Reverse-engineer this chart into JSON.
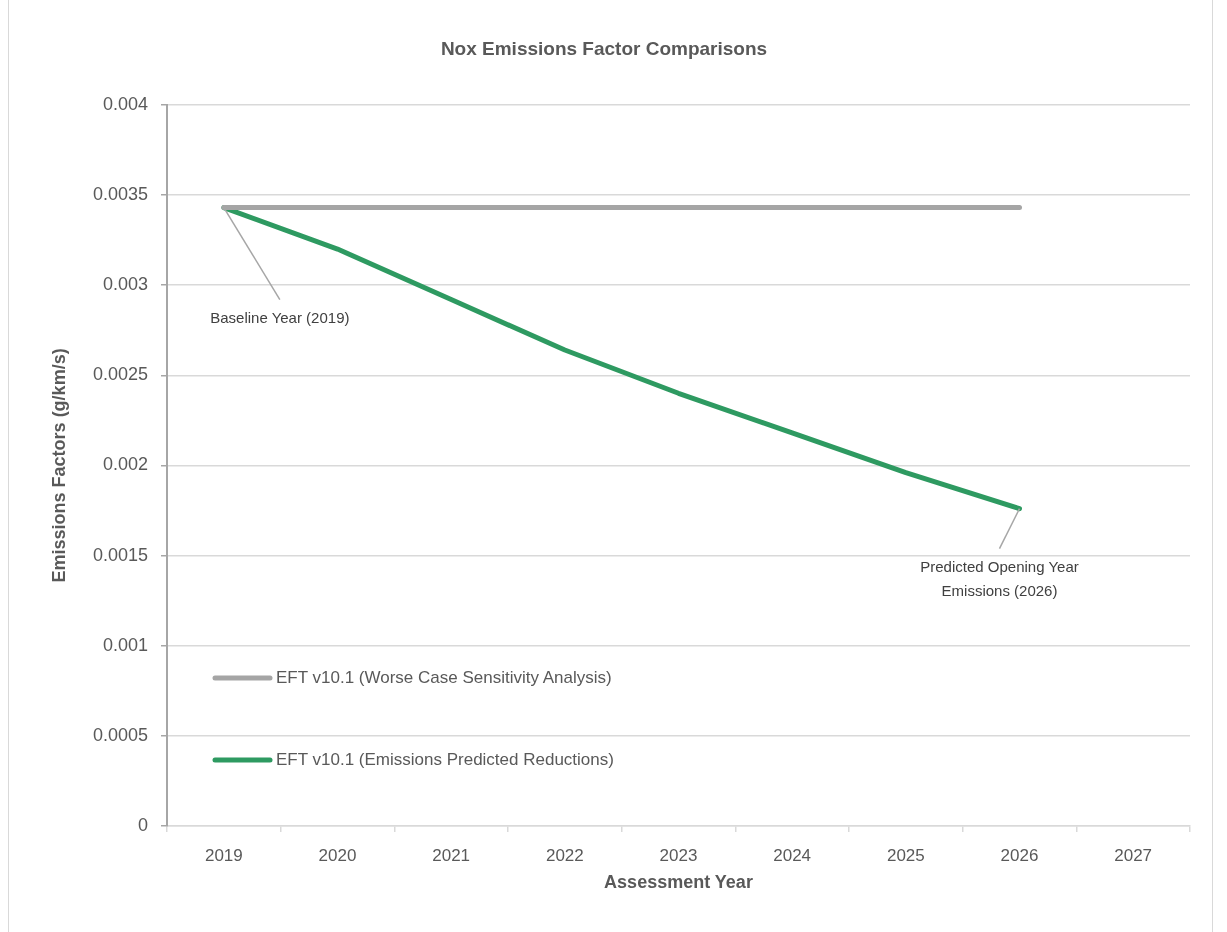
{
  "chart_data": {
    "type": "line",
    "title": "Nox Emissions Factor Comparisons",
    "xlabel": "Assessment Year",
    "ylabel": "Emissions Factors (g/km/s)",
    "categories": [
      "2019",
      "2020",
      "2021",
      "2022",
      "2023",
      "2024",
      "2025",
      "2026",
      "2027"
    ],
    "series": [
      {
        "name": "EFT v10.1 (Worse Case Sensitivity Analysis)",
        "color": "#a5a5a5",
        "values": [
          0.00343,
          0.00343,
          0.00343,
          0.00343,
          0.00343,
          0.00343,
          0.00343,
          0.00343,
          null
        ]
      },
      {
        "name": "EFT v10.1 (Emissions Predicted Reductions)",
        "color": "#2e9a61",
        "values": [
          0.00343,
          0.0032,
          0.00292,
          0.00264,
          0.0024,
          0.00218,
          0.00196,
          0.00176,
          null
        ]
      }
    ],
    "ylim": [
      0,
      0.004
    ],
    "yticks": [
      0,
      0.0005,
      0.001,
      0.0015,
      0.002,
      0.0025,
      0.003,
      0.0035,
      0.004
    ],
    "grid": "y",
    "legend": "bottom left",
    "marker": "none",
    "annotations": [
      {
        "text": "Baseline Year (2019)",
        "x": "2019",
        "y": 0.00343
      },
      {
        "text": "Predicted Opening Year Emissions (2026)",
        "x": "2026",
        "y": 0.00176
      }
    ]
  }
}
